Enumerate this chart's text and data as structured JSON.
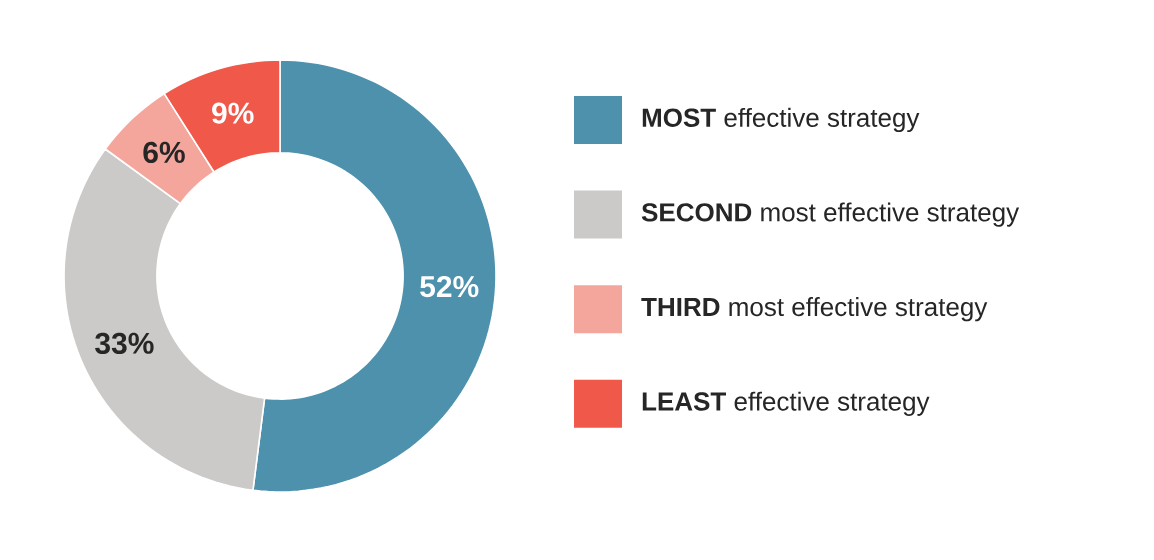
{
  "chart_data": {
    "type": "donut",
    "categories": [
      "**MOST** effective strategy",
      "**SECOND** most effective strategy",
      "**THIRD** most effective strategy",
      "**LEAST** effective strategy"
    ],
    "values": [
      52,
      33,
      6,
      9
    ],
    "colors": [
      "#4e91ad",
      "#cccac8",
      "#f4a69d",
      "#f0584a"
    ],
    "value_labels": [
      "52%",
      "33%",
      "6%",
      "9%"
    ],
    "legend": "right"
  }
}
